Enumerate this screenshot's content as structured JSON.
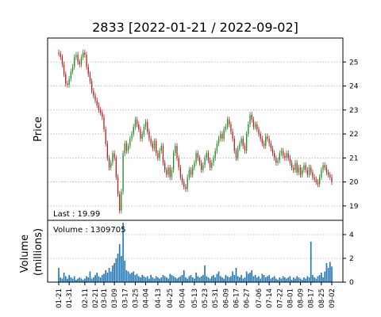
{
  "chart_data": [
    {
      "type": "candlestick",
      "title": "2833   [2022-01-21 / 2022-09-02]",
      "ylabel": "Price",
      "ylim": [
        18.4,
        26.0
      ],
      "yticks": [
        19,
        20,
        21,
        22,
        23,
        24,
        25
      ],
      "annotation": "Last : 19.99",
      "grid": true,
      "up_color": "#228b22",
      "down_color": "#b22222",
      "x": [
        "2022-01-21",
        "2022-01-24",
        "2022-01-25",
        "2022-01-26",
        "2022-01-27",
        "2022-01-28",
        "2022-01-31",
        "2022-02-01",
        "2022-02-02",
        "2022-02-03",
        "2022-02-04",
        "2022-02-07",
        "2022-02-08",
        "2022-02-09",
        "2022-02-10",
        "2022-02-11",
        "2022-02-14",
        "2022-02-15",
        "2022-02-16",
        "2022-02-17",
        "2022-02-18",
        "2022-02-21",
        "2022-02-22",
        "2022-02-23",
        "2022-02-24",
        "2022-02-25",
        "2022-03-01",
        "2022-03-02",
        "2022-03-03",
        "2022-03-04",
        "2022-03-07",
        "2022-03-08",
        "2022-03-09",
        "2022-03-10",
        "2022-03-11",
        "2022-03-14",
        "2022-03-15",
        "2022-03-16",
        "2022-03-17",
        "2022-03-18",
        "2022-03-21",
        "2022-03-22",
        "2022-03-23",
        "2022-03-24",
        "2022-03-25",
        "2022-03-28",
        "2022-03-29",
        "2022-03-30",
        "2022-03-31",
        "2022-04-01",
        "2022-04-04",
        "2022-04-05",
        "2022-04-06",
        "2022-04-07",
        "2022-04-08",
        "2022-04-11",
        "2022-04-12",
        "2022-04-13",
        "2022-04-14",
        "2022-04-15",
        "2022-04-19",
        "2022-04-20",
        "2022-04-21",
        "2022-04-22",
        "2022-04-25",
        "2022-04-26",
        "2022-04-27",
        "2022-04-28",
        "2022-04-29",
        "2022-05-02",
        "2022-05-03",
        "2022-05-04",
        "2022-05-05",
        "2022-05-06",
        "2022-05-09",
        "2022-05-10",
        "2022-05-11",
        "2022-05-12",
        "2022-05-13",
        "2022-05-16",
        "2022-05-17",
        "2022-05-18",
        "2022-05-19",
        "2022-05-20",
        "2022-05-23",
        "2022-05-24",
        "2022-05-25",
        "2022-05-26",
        "2022-05-27",
        "2022-05-30",
        "2022-05-31",
        "2022-06-01",
        "2022-06-02",
        "2022-06-06",
        "2022-06-07",
        "2022-06-08",
        "2022-06-09",
        "2022-06-10",
        "2022-06-13",
        "2022-06-14",
        "2022-06-15",
        "2022-06-16",
        "2022-06-17",
        "2022-06-20",
        "2022-06-21",
        "2022-06-22",
        "2022-06-23",
        "2022-06-24",
        "2022-06-27",
        "2022-06-28",
        "2022-06-29",
        "2022-06-30",
        "2022-07-01",
        "2022-07-04",
        "2022-07-05",
        "2022-07-06",
        "2022-07-07",
        "2022-07-08",
        "2022-07-11",
        "2022-07-12",
        "2022-07-13",
        "2022-07-14",
        "2022-07-15",
        "2022-07-18",
        "2022-07-19",
        "2022-07-20",
        "2022-07-21",
        "2022-07-22",
        "2022-07-25",
        "2022-07-26",
        "2022-07-27",
        "2022-07-28",
        "2022-07-29",
        "2022-08-01",
        "2022-08-02",
        "2022-08-03",
        "2022-08-04",
        "2022-08-05",
        "2022-08-08",
        "2022-08-09",
        "2022-08-10",
        "2022-08-11",
        "2022-08-12",
        "2022-08-15",
        "2022-08-16",
        "2022-08-17",
        "2022-08-18",
        "2022-08-19",
        "2022-08-22",
        "2022-08-23",
        "2022-08-24",
        "2022-08-25",
        "2022-08-26",
        "2022-08-29",
        "2022-08-30",
        "2022-08-31",
        "2022-09-01",
        "2022-09-02"
      ],
      "close": [
        25.35,
        25.2,
        24.9,
        24.5,
        24.1,
        24.05,
        24.3,
        24.6,
        24.8,
        25.2,
        25.3,
        25.0,
        24.9,
        25.2,
        25.4,
        25.3,
        24.8,
        24.5,
        24.2,
        23.8,
        23.6,
        23.4,
        23.2,
        23.0,
        22.9,
        22.7,
        22.2,
        21.6,
        21.0,
        20.6,
        20.8,
        21.2,
        21.0,
        20.2,
        19.5,
        18.8,
        19.6,
        21.2,
        21.6,
        21.3,
        21.5,
        21.8,
        22.0,
        22.3,
        22.6,
        22.4,
        22.2,
        21.8,
        22.0,
        22.3,
        22.5,
        22.1,
        21.8,
        21.6,
        21.4,
        21.7,
        21.2,
        21.0,
        21.3,
        21.5,
        20.8,
        20.5,
        20.3,
        20.6,
        20.2,
        20.5,
        21.2,
        21.5,
        21.0,
        20.6,
        20.2,
        20.0,
        19.8,
        19.7,
        20.2,
        20.5,
        20.3,
        20.6,
        20.8,
        21.2,
        21.0,
        20.8,
        20.5,
        20.7,
        21.0,
        21.2,
        20.9,
        20.6,
        20.8,
        21.0,
        21.3,
        21.6,
        21.8,
        22.0,
        21.8,
        22.2,
        22.3,
        22.6,
        22.4,
        22.1,
        21.8,
        21.3,
        21.0,
        21.4,
        21.6,
        21.8,
        21.5,
        21.3,
        22.0,
        22.4,
        22.8,
        22.6,
        22.3,
        22.4,
        22.2,
        22.0,
        21.8,
        21.6,
        21.5,
        21.9,
        21.8,
        21.6,
        21.4,
        21.2,
        21.0,
        20.8,
        20.9,
        21.2,
        21.3,
        21.1,
        21.0,
        21.2,
        21.0,
        20.8,
        20.6,
        20.5,
        20.8,
        20.4,
        20.6,
        20.3,
        20.5,
        20.7,
        20.5,
        20.3,
        20.6,
        20.4,
        20.2,
        20.1,
        20.0,
        19.9,
        20.2,
        20.5,
        20.7,
        20.6,
        20.4,
        20.3,
        20.2,
        19.99
      ],
      "open": [
        25.4,
        25.35,
        25.2,
        24.9,
        24.5,
        24.1,
        24.05,
        24.3,
        24.6,
        24.8,
        25.2,
        25.3,
        25.0,
        24.9,
        25.2,
        25.4,
        25.3,
        24.8,
        24.5,
        24.2,
        23.8,
        23.6,
        23.4,
        23.2,
        23.0,
        22.9,
        22.7,
        22.2,
        21.6,
        21.0,
        20.6,
        20.8,
        21.2,
        21.0,
        20.2,
        19.5,
        18.8,
        19.6,
        21.2,
        21.6,
        21.3,
        21.5,
        21.8,
        22.0,
        22.3,
        22.6,
        22.4,
        22.2,
        21.8,
        22.0,
        22.3,
        22.5,
        22.1,
        21.8,
        21.6,
        21.4,
        21.7,
        21.2,
        21.0,
        21.3,
        21.5,
        20.8,
        20.5,
        20.3,
        20.6,
        20.2,
        20.5,
        21.2,
        21.5,
        21.0,
        20.6,
        20.2,
        20.0,
        19.8,
        19.7,
        20.2,
        20.5,
        20.3,
        20.6,
        20.8,
        21.2,
        21.0,
        20.8,
        20.5,
        20.7,
        21.0,
        21.2,
        20.9,
        20.6,
        20.8,
        21.0,
        21.3,
        21.6,
        21.8,
        22.0,
        21.8,
        22.2,
        22.3,
        22.6,
        22.4,
        22.1,
        21.8,
        21.3,
        21.0,
        21.4,
        21.6,
        21.8,
        21.5,
        21.3,
        22.0,
        22.4,
        22.8,
        22.6,
        22.3,
        22.4,
        22.2,
        22.0,
        21.8,
        21.6,
        21.5,
        21.9,
        21.8,
        21.6,
        21.4,
        21.2,
        21.0,
        20.8,
        20.9,
        21.2,
        21.3,
        21.1,
        21.0,
        21.2,
        21.0,
        20.8,
        20.6,
        20.5,
        20.8,
        20.4,
        20.6,
        20.3,
        20.5,
        20.7,
        20.5,
        20.3,
        20.6,
        20.4,
        20.2,
        20.1,
        20.0,
        19.9,
        20.2,
        20.5,
        20.7,
        20.6,
        20.4,
        20.3,
        20.2
      ],
      "xtick_labels": [
        "01-21",
        "01-31",
        "02-11",
        "02-21",
        "03-01",
        "03-09",
        "03-17",
        "03-25",
        "04-04",
        "04-13",
        "04-25",
        "05-04",
        "05-13",
        "05-23",
        "05-31",
        "06-09",
        "06-17",
        "06-27",
        "07-06",
        "07-14",
        "07-22",
        "08-01",
        "08-09",
        "08-17",
        "08-25",
        "09-02"
      ]
    },
    {
      "type": "bar",
      "ylabel": "Volume\n(millions)",
      "ylim": [
        0,
        5.2
      ],
      "yticks": [
        0,
        2,
        4
      ],
      "annotation": "Volume : 1309705",
      "color": "#1f77b4",
      "values": [
        1.2,
        0.4,
        0.3,
        0.8,
        0.5,
        0.3,
        0.6,
        0.4,
        0.3,
        0.5,
        0.2,
        0.3,
        0.4,
        0.3,
        0.2,
        0.3,
        0.5,
        0.4,
        0.9,
        0.3,
        0.4,
        0.6,
        0.8,
        0.5,
        0.4,
        0.6,
        0.7,
        1.0,
        0.8,
        1.2,
        0.9,
        1.4,
        1.6,
        2.0,
        2.4,
        3.2,
        2.2,
        5.0,
        1.8,
        1.0,
        0.9,
        0.7,
        0.8,
        0.9,
        0.6,
        0.7,
        0.5,
        0.4,
        0.6,
        0.5,
        0.4,
        0.5,
        0.3,
        0.6,
        0.4,
        0.3,
        0.5,
        0.4,
        0.3,
        0.4,
        0.6,
        0.5,
        0.4,
        0.3,
        0.7,
        0.6,
        0.5,
        0.4,
        0.3,
        0.4,
        0.5,
        0.6,
        1.0,
        0.4,
        0.3,
        0.5,
        0.6,
        0.4,
        0.3,
        0.8,
        0.5,
        0.4,
        0.5,
        0.6,
        1.4,
        0.5,
        0.4,
        0.3,
        0.5,
        0.6,
        0.4,
        0.7,
        0.9,
        0.5,
        0.4,
        0.3,
        0.6,
        0.5,
        0.4,
        0.5,
        0.9,
        0.6,
        1.2,
        0.5,
        0.4,
        0.6,
        0.3,
        0.4,
        0.9,
        0.7,
        0.8,
        1.0,
        0.5,
        0.6,
        0.4,
        0.5,
        0.3,
        0.7,
        0.6,
        0.4,
        0.5,
        0.6,
        0.3,
        0.4,
        0.5,
        0.3,
        0.2,
        0.4,
        0.3,
        0.5,
        0.4,
        0.3,
        0.4,
        0.5,
        0.2,
        0.4,
        0.3,
        0.5,
        0.4,
        0.3,
        0.2,
        0.4,
        0.3,
        0.5,
        0.4,
        3.4,
        0.6,
        0.4,
        0.3,
        0.5,
        0.6,
        0.8,
        0.4,
        0.9,
        1.6,
        1.2,
        1.7,
        1.31
      ]
    }
  ]
}
